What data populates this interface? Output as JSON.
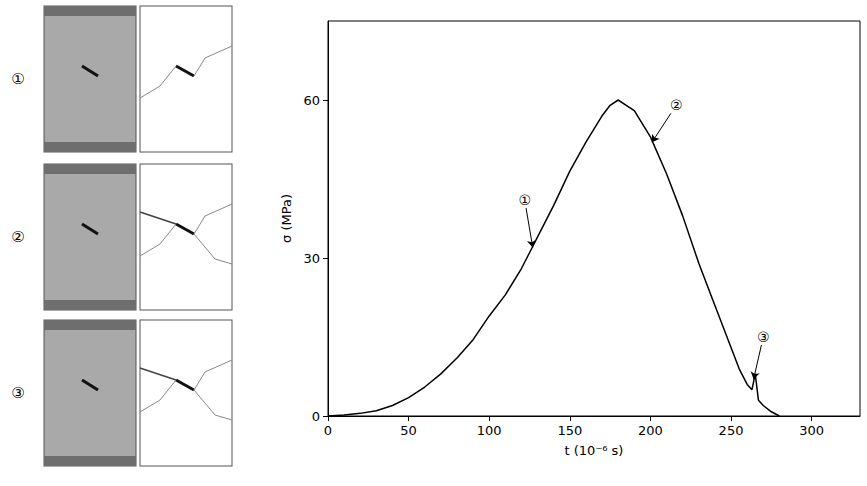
{
  "chart_data": {
    "type": "line",
    "x_label": "t (10⁻⁶ s)",
    "y_label": "σ (MPa)",
    "x": [
      0,
      10,
      20,
      30,
      40,
      50,
      60,
      70,
      80,
      90,
      100,
      110,
      120,
      125,
      130,
      140,
      150,
      160,
      170,
      175,
      180,
      185,
      190,
      200,
      210,
      220,
      230,
      240,
      250,
      255,
      260,
      263,
      265,
      267,
      270,
      275,
      280
    ],
    "values": [
      0,
      0.2,
      0.5,
      1,
      2,
      3.5,
      5.5,
      8,
      11,
      14.5,
      19,
      23,
      28,
      31,
      34,
      40,
      46.5,
      52,
      57,
      59,
      60,
      59,
      58,
      53,
      46,
      38,
      29,
      21,
      13,
      9,
      6,
      5,
      8,
      3,
      2,
      0.8,
      0
    ],
    "color": "#000000",
    "xlim": [
      0,
      330
    ],
    "xticks": [
      0,
      50,
      100,
      150,
      200,
      250,
      300
    ],
    "ylim": [
      0,
      75
    ],
    "yticks": [
      0,
      30,
      60
    ],
    "grid": false,
    "annotations": [
      {
        "text": "①",
        "x": 127,
        "y": 32,
        "text_x": 122,
        "text_y": 41
      },
      {
        "text": "②",
        "x": 201,
        "y": 52,
        "text_x": 216,
        "text_y": 59
      },
      {
        "text": "③",
        "x": 264,
        "y": 7,
        "text_x": 270,
        "text_y": 15
      }
    ],
    "panels": [
      {
        "label": "①"
      },
      {
        "label": "②"
      },
      {
        "label": "③"
      }
    ]
  }
}
